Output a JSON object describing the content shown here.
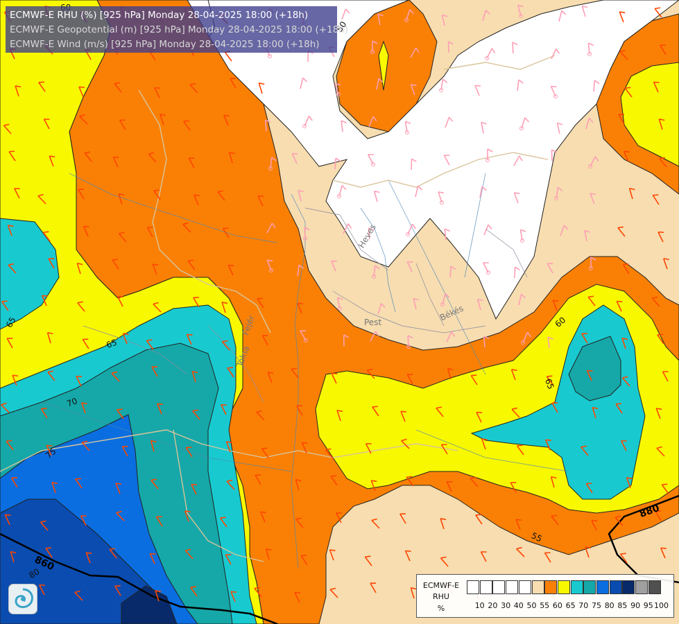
{
  "titles": [
    {
      "text": "ECMWF-E RHU (%) [925 hPa] Monday 28-04-2025 18:00 (+18h)",
      "color": "#ffffff"
    },
    {
      "text": "ECMWF-E Geopotential (m) [925 hPa] Monday 28-04-2025 18:00 (+18h)",
      "color": "#d8d8d8"
    },
    {
      "text": "ECMWF-E Wind (m/s) [925 hPa] Monday 28-04-2025 18:00 (+18h)",
      "color": "#d8d8d8"
    }
  ],
  "legend": {
    "title_lines": [
      "ECMWF-E",
      "RHU",
      "%"
    ],
    "ticks": [
      "10",
      "20",
      "30",
      "40",
      "50",
      "55",
      "60",
      "65",
      "70",
      "75",
      "80",
      "85",
      "90",
      "95",
      "100"
    ],
    "colors": [
      "#ffffff",
      "#ffffff",
      "#ffffff",
      "#ffffff",
      "#ffffff",
      "#f7ddb0",
      "#f98005",
      "#f8f800",
      "#18cacf",
      "#16a8a8",
      "#0a6ee0",
      "#0a4cb0",
      "#082a6a",
      "#a0a0a0",
      "#505050"
    ]
  },
  "contour_labels": [
    {
      "text": "50"
    },
    {
      "text": "60"
    },
    {
      "text": "65"
    },
    {
      "text": "65"
    },
    {
      "text": "60"
    },
    {
      "text": "65"
    },
    {
      "text": "70"
    },
    {
      "text": "75"
    },
    {
      "text": "55"
    },
    {
      "text": "80"
    }
  ],
  "geopotential_labels": [
    {
      "text": "860"
    },
    {
      "text": "880"
    }
  ],
  "region_labels": [
    {
      "text": "Heves"
    },
    {
      "text": "Pest"
    },
    {
      "text": "Békés"
    },
    {
      "text": "Fejér"
    },
    {
      "text": "Tolna"
    }
  ],
  "logo_icon": "swirl-logo-icon",
  "wind_barb_colors": {
    "high_humidity": "#ff4500",
    "low_humidity": "#ff9eb5"
  }
}
